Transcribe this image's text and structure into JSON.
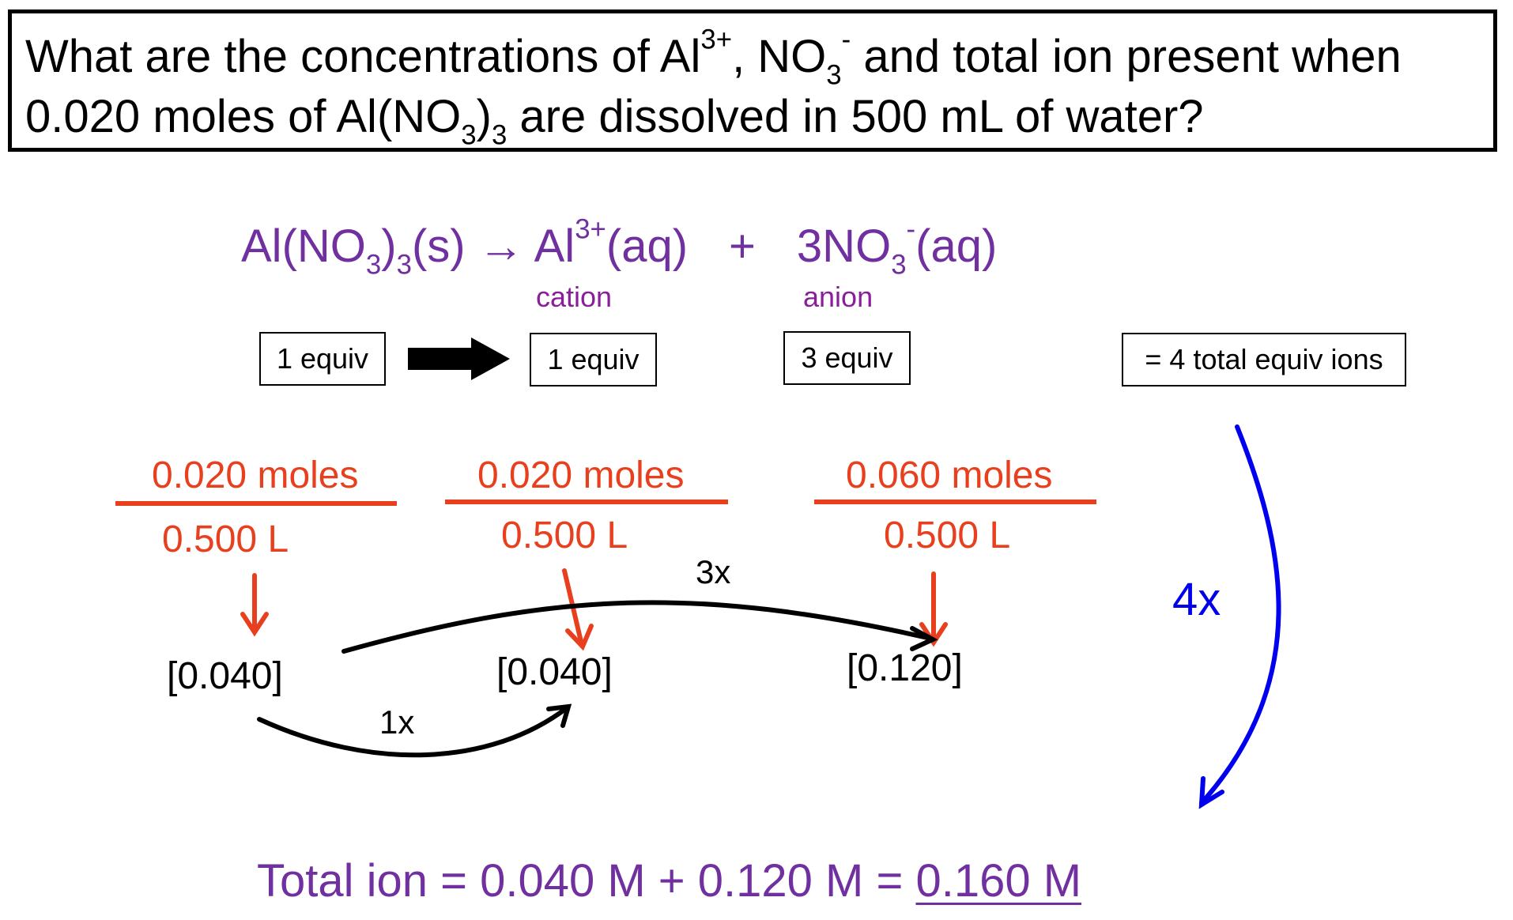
{
  "question": {
    "line1_a": "What are the concentrations of  Al",
    "line1_al_charge": "3+",
    "line1_b": ", NO",
    "line1_no3_sub": "3",
    "line1_no3_charge": "-",
    "line1_c": "  and total ion present when",
    "line2_a": "0.020 moles of Al(NO",
    "line2_sub1": "3",
    "line2_b": ")",
    "line2_sub2": "3",
    "line2_c": " are dissolved in 500 mL of water?"
  },
  "equation": {
    "reactant_a": "Al(NO",
    "reactant_sub1": "3",
    "reactant_b": ")",
    "reactant_sub2": "3",
    "reactant_c": "(s)",
    "arrow": "→",
    "cation_a": "Al",
    "cation_charge": "3+",
    "cation_b": "(aq)",
    "plus": "+",
    "anion_a": "3NO",
    "anion_sub": "3",
    "anion_charge": "-",
    "anion_b": "(aq)",
    "cation_label": "cation",
    "anion_label": "anion"
  },
  "equiv": {
    "reactant": "1 equiv",
    "cation": "1 equiv",
    "anion": "3 equiv",
    "total": "= 4 total equiv ions"
  },
  "fractions": [
    {
      "numerator": "0.020 moles",
      "denominator": "0.500 L",
      "result": "[0.040]"
    },
    {
      "numerator": "0.020 moles",
      "denominator": "0.500 L",
      "result": "[0.040]"
    },
    {
      "numerator": "0.060 moles",
      "denominator": "0.500 L",
      "result": "[0.120]"
    }
  ],
  "multipliers": {
    "one": "1x",
    "three": "3x",
    "four": "4x"
  },
  "total": {
    "prefix": "Total ion = 0.040 M + 0.120 M = ",
    "answer": "0.160 M"
  },
  "colors": {
    "purple": "#7030a0",
    "orange": "#e8401e",
    "label_purple": "#8a1d9a",
    "blue": "#0000ee",
    "black": "#000000"
  }
}
